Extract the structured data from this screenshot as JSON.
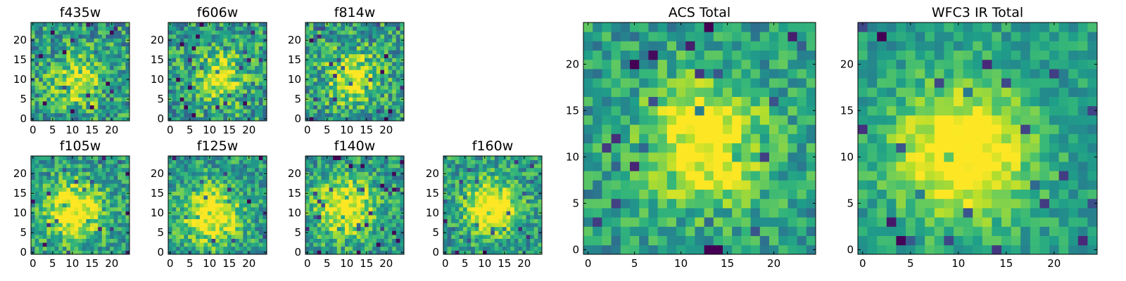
{
  "chart_data": [
    {
      "type": "heatmap",
      "title": "f435w",
      "x_tick_labels": [
        "0",
        "5",
        "10",
        "15",
        "20"
      ],
      "y_tick_labels": [
        "0",
        "5",
        "10",
        "15",
        "20"
      ],
      "xlim": [
        0,
        25
      ],
      "ylim": [
        0,
        25
      ],
      "rows": 25,
      "cols": 25,
      "colormap": "viridis",
      "peak": [
        12,
        10
      ],
      "peak_width": 4.5,
      "peak_strength": 0.35,
      "noise": 0.55,
      "seed": 11,
      "cell_values": "noisy faint source near center"
    },
    {
      "type": "heatmap",
      "title": "f606w",
      "x_tick_labels": [
        "0",
        "5",
        "10",
        "15",
        "20"
      ],
      "y_tick_labels": [
        "0",
        "5",
        "10",
        "15",
        "20"
      ],
      "xlim": [
        0,
        25
      ],
      "ylim": [
        0,
        25
      ],
      "rows": 25,
      "cols": 25,
      "colormap": "viridis",
      "peak": [
        13,
        11
      ],
      "peak_width": 4.5,
      "peak_strength": 0.4,
      "noise": 0.55,
      "seed": 23,
      "cell_values": "noisy faint source near center"
    },
    {
      "type": "heatmap",
      "title": "f814w",
      "x_tick_labels": [
        "0",
        "5",
        "10",
        "15",
        "20"
      ],
      "y_tick_labels": [
        "0",
        "5",
        "10",
        "15",
        "20"
      ],
      "xlim": [
        0,
        25
      ],
      "ylim": [
        0,
        25
      ],
      "rows": 25,
      "cols": 25,
      "colormap": "viridis",
      "peak": [
        12,
        11
      ],
      "peak_width": 4.5,
      "peak_strength": 0.45,
      "noise": 0.55,
      "seed": 37,
      "cell_values": "noisy faint source near center"
    },
    {
      "type": "heatmap",
      "title": "f105w",
      "x_tick_labels": [
        "0",
        "5",
        "10",
        "15",
        "20"
      ],
      "y_tick_labels": [
        "0",
        "5",
        "10",
        "15",
        "20"
      ],
      "xlim": [
        0,
        25
      ],
      "ylim": [
        0,
        25
      ],
      "rows": 25,
      "cols": 25,
      "colormap": "viridis",
      "peak": [
        11,
        11
      ],
      "peak_width": 5,
      "peak_strength": 0.55,
      "noise": 0.45,
      "seed": 41,
      "cell_values": "source near center"
    },
    {
      "type": "heatmap",
      "title": "f125w",
      "x_tick_labels": [
        "0",
        "5",
        "10",
        "15",
        "20"
      ],
      "y_tick_labels": [
        "0",
        "5",
        "10",
        "15",
        "20"
      ],
      "xlim": [
        0,
        25
      ],
      "ylim": [
        0,
        25
      ],
      "rows": 25,
      "cols": 25,
      "colormap": "viridis",
      "peak": [
        11,
        10
      ],
      "peak_width": 5,
      "peak_strength": 0.55,
      "noise": 0.45,
      "seed": 53,
      "cell_values": "source near center"
    },
    {
      "type": "heatmap",
      "title": "f140w",
      "x_tick_labels": [
        "0",
        "5",
        "10",
        "15",
        "20"
      ],
      "y_tick_labels": [
        "0",
        "5",
        "10",
        "15",
        "20"
      ],
      "xlim": [
        0,
        25
      ],
      "ylim": [
        0,
        25
      ],
      "rows": 25,
      "cols": 25,
      "colormap": "viridis",
      "peak": [
        10,
        12
      ],
      "peak_width": 5,
      "peak_strength": 0.55,
      "noise": 0.45,
      "seed": 67,
      "cell_values": "source near center"
    },
    {
      "type": "heatmap",
      "title": "f160w",
      "x_tick_labels": [
        "0",
        "5",
        "10",
        "15",
        "20"
      ],
      "y_tick_labels": [
        "0",
        "5",
        "10",
        "15",
        "20"
      ],
      "xlim": [
        0,
        25
      ],
      "ylim": [
        0,
        25
      ],
      "rows": 25,
      "cols": 25,
      "colormap": "viridis",
      "peak": [
        12,
        12
      ],
      "peak_width": 4.5,
      "peak_strength": 0.6,
      "noise": 0.45,
      "seed": 79,
      "cell_values": "source near center"
    },
    {
      "type": "heatmap",
      "title": "ACS Total",
      "x_tick_labels": [
        "0",
        "5",
        "10",
        "15",
        "20"
      ],
      "y_tick_labels": [
        "0",
        "5",
        "10",
        "15",
        "20"
      ],
      "xlim": [
        0,
        25
      ],
      "ylim": [
        0,
        25
      ],
      "rows": 25,
      "cols": 25,
      "colormap": "viridis",
      "peak": [
        13,
        12
      ],
      "peak_width": 4.5,
      "peak_strength": 0.55,
      "noise": 0.4,
      "seed": 97,
      "cell_values": "source near center"
    },
    {
      "type": "heatmap",
      "title": "WFC3 IR Total",
      "x_tick_labels": [
        "0",
        "5",
        "10",
        "15",
        "20"
      ],
      "y_tick_labels": [
        "0",
        "5",
        "10",
        "15",
        "20"
      ],
      "xlim": [
        0,
        25
      ],
      "ylim": [
        0,
        25
      ],
      "rows": 25,
      "cols": 25,
      "colormap": "viridis",
      "peak": [
        11,
        11
      ],
      "peak_width": 5,
      "peak_strength": 0.6,
      "noise": 0.3,
      "seed": 131,
      "cell_values": "smooth source near center"
    }
  ]
}
